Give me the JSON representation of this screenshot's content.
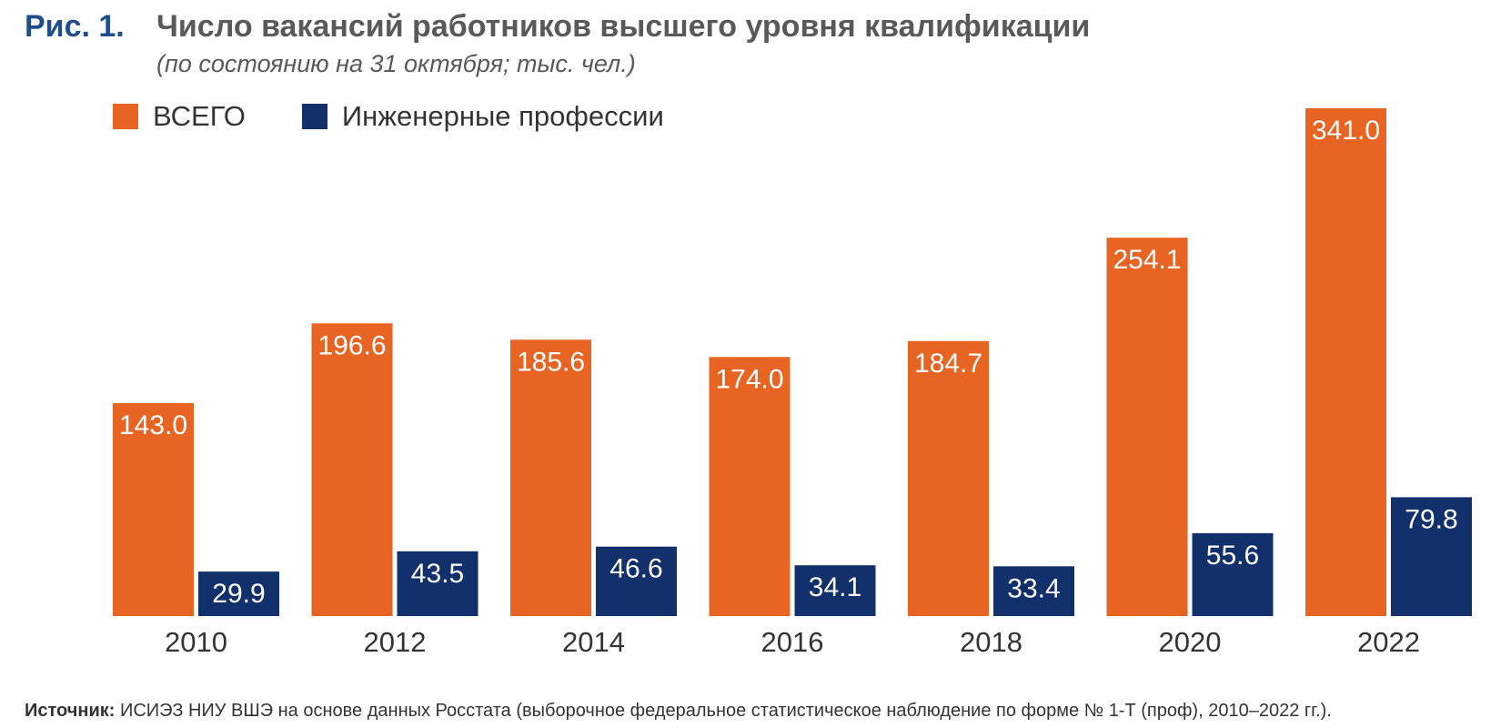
{
  "header": {
    "figure_label": "Рис. 1.",
    "title": "Число вакансий работников высшего уровня квалификации",
    "subtitle": "(по состоянию на 31 октября; тыс. чел.)"
  },
  "legend": {
    "items": [
      {
        "label": "ВСЕГО",
        "color": "#e86422"
      },
      {
        "label": "Инженерные профессии",
        "color": "#12306b"
      }
    ]
  },
  "source": {
    "label": "Источник:",
    "text": "ИСИЭЗ НИУ ВШЭ на основе данных Росстата (выборочное федеральное статистическое наблюдение по форме № 1-Т (проф), 2010–2022 гг.)."
  },
  "chart_data": {
    "type": "bar",
    "categories": [
      "2010",
      "2012",
      "2014",
      "2016",
      "2018",
      "2020",
      "2022"
    ],
    "series": [
      {
        "name": "ВСЕГО",
        "values": [
          143.0,
          196.6,
          185.6,
          174.0,
          184.7,
          254.1,
          341.0
        ],
        "labels": [
          "143.0",
          "196.6",
          "185.6",
          "174.0",
          "184.7",
          "254.1",
          "341.0"
        ],
        "color": "#e86422"
      },
      {
        "name": "Инженерные профессии",
        "values": [
          29.9,
          43.5,
          46.6,
          34.1,
          33.4,
          55.6,
          79.8
        ],
        "labels": [
          "29.9",
          "43.5",
          "46.6",
          "34.1",
          "33.4",
          "55.6",
          "79.8"
        ],
        "color": "#12306b"
      }
    ],
    "title": "Число вакансий работников высшего уровня квалификации",
    "subtitle": "(по состоянию на 31 октября; тыс. чел.)",
    "xlabel": "",
    "ylabel": "",
    "ylim": [
      0,
      341
    ],
    "grid": false,
    "legend_position": "top-left",
    "data_labels": "inside-top",
    "label_color": "#ffffff",
    "tick_label_color": "#333333"
  }
}
